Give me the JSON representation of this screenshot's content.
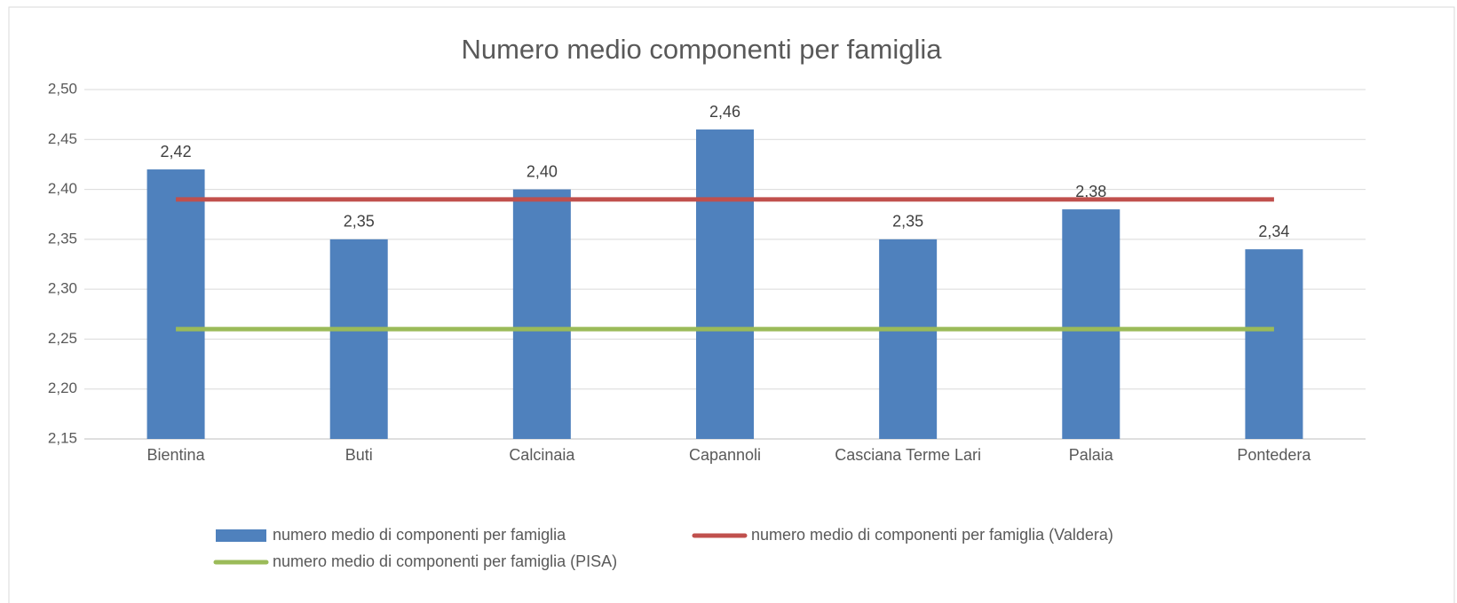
{
  "chart_data": {
    "type": "bar",
    "title": "Numero medio componenti per famiglia",
    "categories": [
      "Bientina",
      "Buti",
      "Calcinaia",
      "Capannoli",
      "Casciana Terme Lari",
      "Palaia",
      "Pontedera"
    ],
    "series": [
      {
        "name": "numero medio di componenti per famiglia",
        "type": "bar",
        "color": "#4f81bd",
        "values": [
          2.42,
          2.35,
          2.4,
          2.46,
          2.35,
          2.38,
          2.34
        ],
        "value_labels": [
          "2,42",
          "2,35",
          "2,40",
          "2,46",
          "2,35",
          "2,38",
          "2,34"
        ]
      },
      {
        "name": "numero medio di componenti per famiglia (Valdera)",
        "type": "line",
        "color": "#c0504d",
        "values": [
          2.39,
          2.39,
          2.39,
          2.39,
          2.39,
          2.39,
          2.39
        ]
      },
      {
        "name": "numero medio di componenti per famiglia (PISA)",
        "type": "line",
        "color": "#9bbb59",
        "values": [
          2.26,
          2.26,
          2.26,
          2.26,
          2.26,
          2.26,
          2.26
        ]
      }
    ],
    "ylim": [
      2.15,
      2.5
    ],
    "yticks": [
      {
        "value": 2.15,
        "label": "2,15"
      },
      {
        "value": 2.2,
        "label": "2,20"
      },
      {
        "value": 2.25,
        "label": "2,25"
      },
      {
        "value": 2.3,
        "label": "2,30"
      },
      {
        "value": 2.35,
        "label": "2,35"
      },
      {
        "value": 2.4,
        "label": "2,40"
      },
      {
        "value": 2.45,
        "label": "2,45"
      },
      {
        "value": 2.5,
        "label": "2,50"
      }
    ],
    "grid": true,
    "legend": "bottom"
  }
}
